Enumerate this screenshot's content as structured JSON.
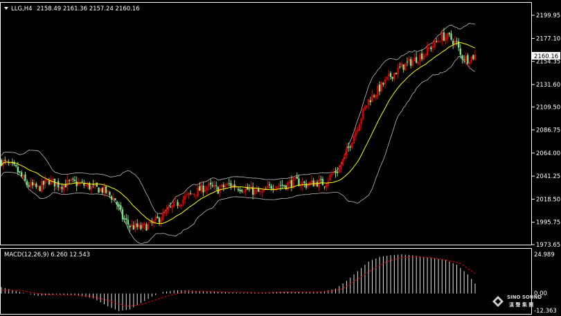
{
  "header": {
    "symbol": "LLG,H4",
    "ohlc": "2158.49 2161.36 2157.24 2160.16",
    "menu_icon": "triangle-down-icon"
  },
  "indicator": {
    "label": "MACD(12,26,9) 6.260 12.543",
    "axis_top": "24.989",
    "axis_zero": "0.00",
    "axis_bottom": "-12.363"
  },
  "watermark": {
    "brand": "SINO SOUND",
    "chinese": "漢 聲 集 團",
    "logo": "diamond-logo-icon"
  },
  "colors": {
    "background": "#000000",
    "bull_candle": "#e00000",
    "bear_candle": "#7fe08a",
    "bands": "#bdbdbd",
    "moving_average": "#ffff00",
    "macd_histogram": "#e8e8e8",
    "macd_signal": "#e00000",
    "price_tag": "#ffffff"
  },
  "chart_data": {
    "type": "candlestick",
    "price_axis_ticks": [
      "2199.95",
      "2177.10",
      "2154.35",
      "2131.60",
      "2109.50",
      "2086.75",
      "2064.00",
      "2041.25",
      "2018.50",
      "1995.75",
      "1973.65"
    ],
    "current_price_label": "2160.16",
    "ylim": [
      1973.65,
      2199.95
    ],
    "macd_ylim": [
      -12.363,
      24.989
    ],
    "macd_params": "12,26,9",
    "macd_value": 6.26,
    "signal_value": 12.543,
    "close_path": [
      [
        0,
        2056
      ],
      [
        8,
        2048
      ],
      [
        14,
        2033
      ],
      [
        20,
        2029
      ],
      [
        26,
        2037
      ],
      [
        32,
        2032
      ],
      [
        38,
        2035
      ],
      [
        44,
        2033
      ],
      [
        50,
        2030
      ],
      [
        56,
        2027
      ],
      [
        62,
        2018
      ],
      [
        66,
        2000
      ],
      [
        70,
        1992
      ],
      [
        76,
        1990
      ],
      [
        82,
        1994
      ],
      [
        88,
        2002
      ],
      [
        94,
        2012
      ],
      [
        100,
        2020
      ],
      [
        106,
        2026
      ],
      [
        112,
        2031
      ],
      [
        118,
        2028
      ],
      [
        124,
        2033
      ],
      [
        130,
        2030
      ],
      [
        136,
        2027
      ],
      [
        142,
        2024
      ],
      [
        148,
        2033
      ],
      [
        154,
        2032
      ],
      [
        160,
        2036
      ],
      [
        166,
        2033
      ],
      [
        172,
        2035
      ],
      [
        176,
        2034
      ],
      [
        180,
        2043
      ],
      [
        184,
        2048
      ],
      [
        188,
        2065
      ],
      [
        192,
        2082
      ],
      [
        196,
        2100
      ],
      [
        200,
        2116
      ],
      [
        206,
        2128
      ],
      [
        212,
        2140
      ],
      [
        218,
        2149
      ],
      [
        224,
        2155
      ],
      [
        230,
        2162
      ],
      [
        236,
        2172
      ],
      [
        240,
        2179
      ],
      [
        244,
        2178
      ],
      [
        248,
        2172
      ],
      [
        250,
        2160
      ],
      [
        254,
        2157
      ],
      [
        258,
        2160
      ]
    ],
    "macd_path": [
      [
        0,
        4
      ],
      [
        10,
        1
      ],
      [
        20,
        -1.5
      ],
      [
        30,
        -0.5
      ],
      [
        40,
        -1
      ],
      [
        50,
        -3
      ],
      [
        58,
        -8
      ],
      [
        64,
        -11
      ],
      [
        70,
        -10
      ],
      [
        76,
        -6
      ],
      [
        82,
        -2
      ],
      [
        88,
        1
      ],
      [
        94,
        2
      ],
      [
        100,
        2
      ],
      [
        110,
        1.5
      ],
      [
        120,
        1
      ],
      [
        130,
        0.5
      ],
      [
        140,
        0.5
      ],
      [
        150,
        1
      ],
      [
        160,
        1
      ],
      [
        170,
        1
      ],
      [
        176,
        1.5
      ],
      [
        182,
        3
      ],
      [
        188,
        8
      ],
      [
        194,
        14
      ],
      [
        200,
        20
      ],
      [
        206,
        23
      ],
      [
        212,
        24
      ],
      [
        218,
        24.5
      ],
      [
        224,
        24
      ],
      [
        230,
        23
      ],
      [
        236,
        22
      ],
      [
        242,
        21
      ],
      [
        248,
        18
      ],
      [
        254,
        12
      ],
      [
        258,
        6.26
      ]
    ],
    "signal_path": [
      [
        0,
        2
      ],
      [
        10,
        2
      ],
      [
        20,
        0
      ],
      [
        30,
        -1
      ],
      [
        40,
        -1
      ],
      [
        50,
        -2
      ],
      [
        60,
        -5
      ],
      [
        68,
        -8
      ],
      [
        76,
        -7
      ],
      [
        84,
        -4
      ],
      [
        92,
        -1
      ],
      [
        100,
        1
      ],
      [
        110,
        1.5
      ],
      [
        120,
        1
      ],
      [
        130,
        1
      ],
      [
        140,
        0.5
      ],
      [
        150,
        0.8
      ],
      [
        160,
        1
      ],
      [
        170,
        1
      ],
      [
        178,
        1.2
      ],
      [
        186,
        3
      ],
      [
        194,
        9
      ],
      [
        202,
        15
      ],
      [
        210,
        20
      ],
      [
        218,
        22.5
      ],
      [
        226,
        23
      ],
      [
        234,
        22.5
      ],
      [
        242,
        21
      ],
      [
        250,
        19
      ],
      [
        258,
        12.5
      ]
    ],
    "candle_count": 259,
    "bollinger_width": 22
  }
}
